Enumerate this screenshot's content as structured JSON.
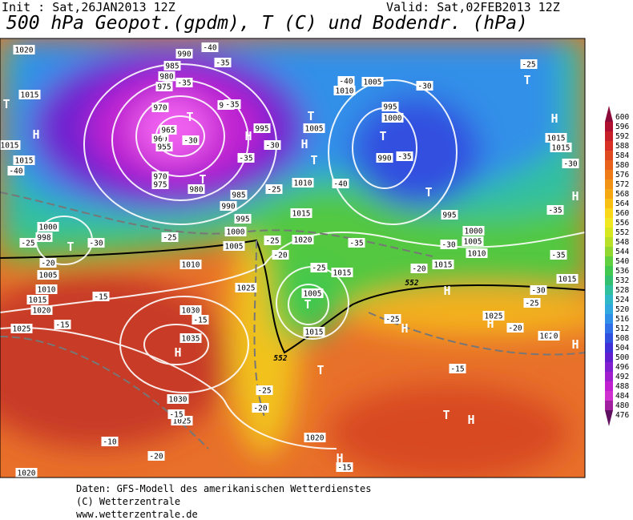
{
  "header": {
    "init": "Init : Sat,26JAN2013 12Z",
    "valid": "Valid: Sat,02FEB2013 12Z",
    "title": "500 hPa Geopot.(gpdm), T (C) und Bodendr. (hPa)"
  },
  "footer": {
    "lines": [
      "Daten: GFS-Modell des amerikanischen Wetterdienstes",
      "(C) Wetterzentrale",
      "www.wetterzentrale.de"
    ]
  },
  "colorbar": {
    "labels": [
      "600",
      "596",
      "592",
      "588",
      "584",
      "580",
      "576",
      "572",
      "568",
      "564",
      "560",
      "556",
      "552",
      "548",
      "544",
      "540",
      "536",
      "532",
      "528",
      "524",
      "520",
      "516",
      "512",
      "508",
      "504",
      "500",
      "496",
      "492",
      "488",
      "484",
      "480",
      "476"
    ],
    "colors": [
      "#8b0a3a",
      "#b01030",
      "#c8202a",
      "#d83024",
      "#e04a20",
      "#e8621c",
      "#ee7a18",
      "#f29216",
      "#f5a814",
      "#f8c014",
      "#f8d818",
      "#f0e820",
      "#d8e820",
      "#b8e028",
      "#90d830",
      "#60d040",
      "#40c850",
      "#30c070",
      "#30c0a0",
      "#30b8c8",
      "#30a8e0",
      "#3090e8",
      "#3070e8",
      "#3050e0",
      "#4030d8",
      "#6020d0",
      "#8020d0",
      "#a020d0",
      "#c020d0",
      "#d030d0",
      "#a020a0",
      "#601060"
    ]
  },
  "map": {
    "isobars": [
      "1020",
      "990",
      "985",
      "980",
      "975",
      "970",
      "965",
      "960",
      "955",
      "970",
      "975",
      "980",
      "990",
      "995",
      "1005",
      "1010",
      "1015",
      "1020",
      "1005",
      "1010",
      "995",
      "1000",
      "990",
      "995",
      "1000",
      "1005",
      "1010",
      "1015",
      "1015",
      "1015",
      "1015",
      "1000",
      "998",
      "1005",
      "1010",
      "1015",
      "1020",
      "1025",
      "1025",
      "1030",
      "1035",
      "1030",
      "1025",
      "1020",
      "1020",
      "1010",
      "1005",
      "1000",
      "995",
      "990",
      "985",
      "1015",
      "1005",
      "1015",
      "1020",
      "1015",
      "1015",
      "1015",
      "1025"
    ],
    "temps": [
      "-40",
      "-35",
      "-35",
      "-35",
      "-30",
      "-35",
      "-30",
      "-25",
      "-40",
      "-40",
      "-40",
      "-35",
      "-30",
      "-25",
      "-30",
      "-35",
      "-30",
      "-35",
      "-25",
      "-20",
      "-35",
      "-25",
      "-20",
      "-25",
      "-30",
      "-25",
      "-15",
      "-15",
      "-15",
      "-15",
      "-20",
      "-25",
      "-30",
      "-25",
      "-20",
      "-15",
      "-10",
      "-20",
      "-15",
      "-25",
      "-20"
    ],
    "centers": [
      "H",
      "T",
      "T",
      "H",
      "T",
      "T",
      "H",
      "T",
      "H",
      "T",
      "H",
      "T",
      "T",
      "T",
      "T",
      "H",
      "T",
      "H",
      "H",
      "H",
      "H",
      "H",
      "T",
      "H",
      "H",
      "T"
    ],
    "contour552": [
      "552",
      "552"
    ]
  }
}
